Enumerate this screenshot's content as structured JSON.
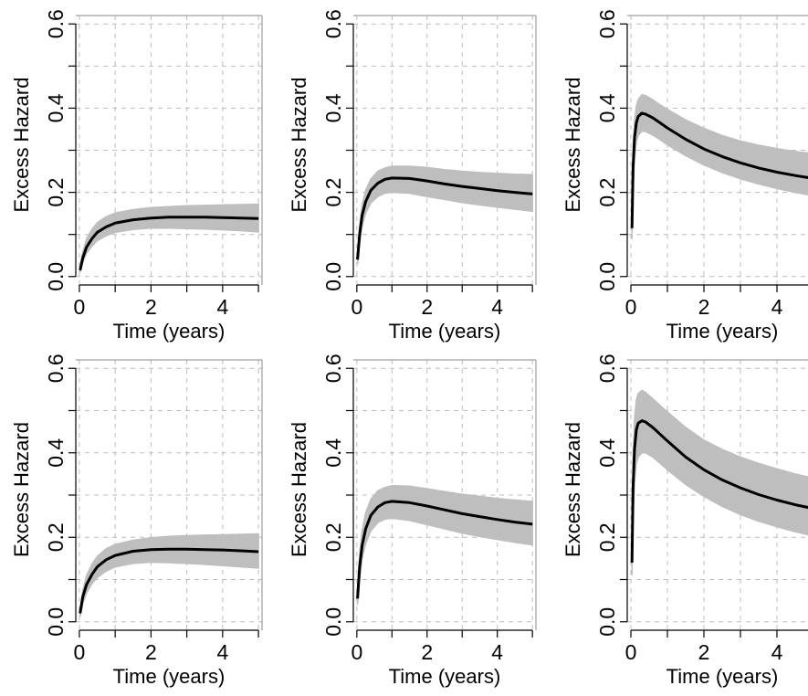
{
  "chart_data": [
    {
      "type": "line",
      "panel": "top-left",
      "xlabel": "Time (years)",
      "ylabel": "Excess Hazard",
      "xlim": [
        0,
        5
      ],
      "ylim": [
        0,
        0.6
      ],
      "xticks": [
        "0",
        "2",
        "4"
      ],
      "yticks": [
        "0.0",
        "0.2",
        "0.4",
        "0.6"
      ],
      "grid": true,
      "series": [
        {
          "x": [
            0.02,
            0.1,
            0.2,
            0.35,
            0.5,
            0.75,
            1,
            1.5,
            2,
            2.5,
            3,
            3.5,
            4,
            4.5,
            5
          ],
          "values": [
            0.015,
            0.045,
            0.07,
            0.09,
            0.105,
            0.118,
            0.127,
            0.135,
            0.139,
            0.141,
            0.141,
            0.141,
            0.14,
            0.139,
            0.138
          ]
        }
      ],
      "band": {
        "x": [
          0.02,
          0.1,
          0.2,
          0.35,
          0.5,
          0.75,
          1,
          1.5,
          2,
          2.5,
          3,
          3.5,
          4,
          4.5,
          5
        ],
        "lower": [
          0.01,
          0.035,
          0.055,
          0.072,
          0.085,
          0.097,
          0.105,
          0.112,
          0.115,
          0.115,
          0.114,
          0.113,
          0.111,
          0.109,
          0.106
        ],
        "upper": [
          0.025,
          0.06,
          0.09,
          0.112,
          0.128,
          0.142,
          0.151,
          0.159,
          0.164,
          0.166,
          0.168,
          0.169,
          0.17,
          0.171,
          0.172
        ]
      }
    },
    {
      "type": "line",
      "panel": "top-middle",
      "xlabel": "Time (years)",
      "ylabel": "Excess Hazard",
      "xlim": [
        0,
        5
      ],
      "ylim": [
        0,
        0.6
      ],
      "xticks": [
        "0",
        "2",
        "4"
      ],
      "yticks": [
        "0.0",
        "0.2",
        "0.4",
        "0.6"
      ],
      "grid": true,
      "series": [
        {
          "x": [
            0.02,
            0.08,
            0.15,
            0.25,
            0.4,
            0.6,
            0.8,
            1,
            1.5,
            2,
            2.5,
            3,
            3.5,
            4,
            4.5,
            5
          ],
          "values": [
            0.04,
            0.1,
            0.145,
            0.178,
            0.205,
            0.222,
            0.231,
            0.234,
            0.233,
            0.227,
            0.22,
            0.214,
            0.209,
            0.204,
            0.2,
            0.196
          ]
        }
      ],
      "band": {
        "x": [
          0.02,
          0.08,
          0.15,
          0.25,
          0.4,
          0.6,
          0.8,
          1,
          1.5,
          2,
          2.5,
          3,
          3.5,
          4,
          4.5,
          5
        ],
        "lower": [
          0.03,
          0.08,
          0.12,
          0.15,
          0.175,
          0.19,
          0.198,
          0.2,
          0.198,
          0.19,
          0.183,
          0.176,
          0.17,
          0.165,
          0.16,
          0.155
        ],
        "upper": [
          0.055,
          0.12,
          0.17,
          0.205,
          0.232,
          0.25,
          0.258,
          0.262,
          0.262,
          0.259,
          0.254,
          0.25,
          0.247,
          0.245,
          0.243,
          0.242
        ]
      }
    },
    {
      "type": "line",
      "panel": "top-right",
      "xlabel": "Time (years)",
      "ylabel": "Excess Hazard",
      "xlim": [
        0,
        5
      ],
      "ylim": [
        0,
        0.6
      ],
      "xticks": [
        "0",
        "2",
        "4"
      ],
      "yticks": [
        "0.0",
        "0.2",
        "0.4",
        "0.6"
      ],
      "grid": true,
      "series": [
        {
          "x": [
            0.03,
            0.06,
            0.1,
            0.15,
            0.2,
            0.3,
            0.4,
            0.6,
            0.8,
            1,
            1.5,
            2,
            2.5,
            3,
            3.5,
            4,
            4.5,
            5
          ],
          "values": [
            0.115,
            0.26,
            0.33,
            0.365,
            0.38,
            0.388,
            0.386,
            0.377,
            0.365,
            0.353,
            0.326,
            0.303,
            0.285,
            0.27,
            0.258,
            0.248,
            0.24,
            0.233
          ]
        }
      ],
      "band": {
        "x": [
          0.03,
          0.06,
          0.1,
          0.15,
          0.2,
          0.3,
          0.4,
          0.6,
          0.8,
          1,
          1.5,
          2,
          2.5,
          3,
          3.5,
          4,
          4.5,
          5
        ],
        "lower": [
          0.09,
          0.21,
          0.28,
          0.32,
          0.335,
          0.345,
          0.345,
          0.336,
          0.325,
          0.313,
          0.287,
          0.265,
          0.247,
          0.232,
          0.22,
          0.209,
          0.2,
          0.192
        ],
        "upper": [
          0.14,
          0.3,
          0.37,
          0.405,
          0.42,
          0.432,
          0.43,
          0.42,
          0.408,
          0.397,
          0.372,
          0.352,
          0.335,
          0.322,
          0.312,
          0.304,
          0.297,
          0.292
        ]
      }
    },
    {
      "type": "line",
      "panel": "bottom-left",
      "xlabel": "Time (years)",
      "ylabel": "Excess Hazard",
      "xlim": [
        0,
        5
      ],
      "ylim": [
        0,
        0.6
      ],
      "xticks": [
        "0",
        "2",
        "4"
      ],
      "yticks": [
        "0.0",
        "0.2",
        "0.4",
        "0.6"
      ],
      "grid": true,
      "series": [
        {
          "x": [
            0.02,
            0.1,
            0.2,
            0.35,
            0.5,
            0.75,
            1,
            1.5,
            2,
            2.5,
            3,
            3.5,
            4,
            4.5,
            5
          ],
          "values": [
            0.02,
            0.06,
            0.088,
            0.112,
            0.13,
            0.147,
            0.157,
            0.167,
            0.171,
            0.172,
            0.172,
            0.171,
            0.17,
            0.168,
            0.166
          ]
        }
      ],
      "band": {
        "x": [
          0.02,
          0.1,
          0.2,
          0.35,
          0.5,
          0.75,
          1,
          1.5,
          2,
          2.5,
          3,
          3.5,
          4,
          4.5,
          5
        ],
        "lower": [
          0.012,
          0.045,
          0.068,
          0.09,
          0.105,
          0.12,
          0.13,
          0.138,
          0.141,
          0.14,
          0.138,
          0.136,
          0.133,
          0.13,
          0.127
        ],
        "upper": [
          0.03,
          0.075,
          0.11,
          0.136,
          0.155,
          0.173,
          0.183,
          0.193,
          0.199,
          0.202,
          0.204,
          0.205,
          0.206,
          0.207,
          0.208
        ]
      }
    },
    {
      "type": "line",
      "panel": "bottom-middle",
      "xlabel": "Time (years)",
      "ylabel": "Excess Hazard",
      "xlim": [
        0,
        5
      ],
      "ylim": [
        0,
        0.6
      ],
      "xticks": [
        "0",
        "2",
        "4"
      ],
      "yticks": [
        "0.0",
        "0.2",
        "0.4",
        "0.6"
      ],
      "grid": true,
      "series": [
        {
          "x": [
            0.02,
            0.08,
            0.15,
            0.25,
            0.4,
            0.6,
            0.8,
            1,
            1.5,
            2,
            2.5,
            3,
            3.5,
            4,
            4.5,
            5
          ],
          "values": [
            0.055,
            0.13,
            0.18,
            0.22,
            0.252,
            0.272,
            0.282,
            0.285,
            0.282,
            0.274,
            0.265,
            0.256,
            0.249,
            0.242,
            0.236,
            0.231
          ]
        }
      ],
      "band": {
        "x": [
          0.02,
          0.08,
          0.15,
          0.25,
          0.4,
          0.6,
          0.8,
          1,
          1.5,
          2,
          2.5,
          3,
          3.5,
          4,
          4.5,
          5
        ],
        "lower": [
          0.04,
          0.1,
          0.15,
          0.185,
          0.215,
          0.235,
          0.243,
          0.245,
          0.24,
          0.23,
          0.22,
          0.21,
          0.202,
          0.195,
          0.188,
          0.182
        ],
        "upper": [
          0.07,
          0.16,
          0.215,
          0.258,
          0.29,
          0.31,
          0.318,
          0.322,
          0.321,
          0.315,
          0.308,
          0.302,
          0.297,
          0.292,
          0.288,
          0.285
        ]
      }
    },
    {
      "type": "line",
      "panel": "bottom-right",
      "xlabel": "Time (years)",
      "ylabel": "Excess Hazard",
      "xlim": [
        0,
        5
      ],
      "ylim": [
        0,
        0.6
      ],
      "xticks": [
        "0",
        "2",
        "4"
      ],
      "yticks": [
        "0.0",
        "0.2",
        "0.4",
        "0.6"
      ],
      "grid": true,
      "series": [
        {
          "x": [
            0.03,
            0.06,
            0.1,
            0.15,
            0.2,
            0.3,
            0.4,
            0.6,
            0.8,
            1,
            1.5,
            2,
            2.5,
            3,
            3.5,
            4,
            4.5,
            5
          ],
          "values": [
            0.14,
            0.32,
            0.41,
            0.455,
            0.47,
            0.476,
            0.473,
            0.46,
            0.444,
            0.428,
            0.39,
            0.36,
            0.336,
            0.317,
            0.301,
            0.288,
            0.277,
            0.268
          ]
        }
      ],
      "band": {
        "x": [
          0.03,
          0.06,
          0.1,
          0.15,
          0.2,
          0.3,
          0.4,
          0.6,
          0.8,
          1,
          1.5,
          2,
          2.5,
          3,
          3.5,
          4,
          4.5,
          5
        ],
        "lower": [
          0.11,
          0.25,
          0.33,
          0.375,
          0.39,
          0.4,
          0.4,
          0.39,
          0.375,
          0.36,
          0.325,
          0.297,
          0.273,
          0.254,
          0.238,
          0.225,
          0.213,
          0.203
        ],
        "upper": [
          0.18,
          0.38,
          0.48,
          0.525,
          0.54,
          0.548,
          0.543,
          0.528,
          0.512,
          0.497,
          0.46,
          0.43,
          0.408,
          0.39,
          0.375,
          0.362,
          0.35,
          0.34
        ]
      }
    }
  ],
  "colors": {
    "band": "#bebebe",
    "line": "#000000",
    "grid": "#bcbcbc",
    "axis": "#000000"
  }
}
